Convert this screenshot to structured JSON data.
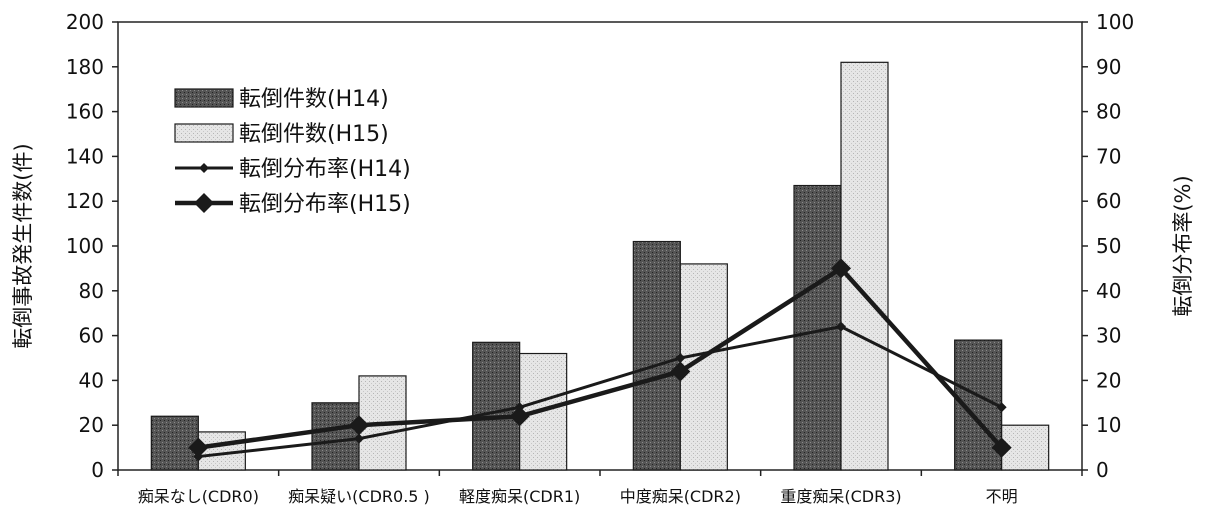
{
  "chart_data": {
    "type": "bar",
    "categories": [
      "痴呆なし(CDR0)",
      "痴呆疑い(CDR0.5 )",
      "軽度痴呆(CDR1)",
      "中度痴呆(CDR2)",
      "重度痴呆(CDR3)",
      "不明"
    ],
    "ylabel_left": "転倒事故発生件数(件)",
    "ylabel_right": "転倒分布率(%)",
    "ylim_left": [
      0,
      200
    ],
    "ylim_right": [
      0,
      100
    ],
    "yticks_left": [
      "0",
      "20",
      "40",
      "60",
      "80",
      "100",
      "120",
      "140",
      "160",
      "180",
      "200"
    ],
    "yticks_right": [
      "0",
      "10",
      "20",
      "30",
      "40",
      "50",
      "60",
      "70",
      "80",
      "90",
      "100"
    ],
    "series": [
      {
        "name": "転倒件数(H14)",
        "kind": "bar",
        "axis": "left",
        "color": "#555555",
        "values": [
          24,
          30,
          57,
          102,
          127,
          58
        ]
      },
      {
        "name": "転倒件数(H15)",
        "kind": "bar",
        "axis": "left",
        "color": "#e6e6e6",
        "values": [
          17,
          42,
          52,
          92,
          182,
          20
        ]
      },
      {
        "name": "転倒分布率(H14)",
        "kind": "line",
        "axis": "right",
        "marker": "small-diamond",
        "color": "#1a1a1a",
        "values": [
          3,
          7,
          14,
          25,
          32,
          14
        ]
      },
      {
        "name": "転倒分布率(H15)",
        "kind": "line",
        "axis": "right",
        "marker": "large-diamond",
        "color": "#1a1a1a",
        "values": [
          5,
          10,
          12,
          22,
          45,
          5
        ]
      }
    ],
    "legend": "upper-left inside plot",
    "grid": false
  }
}
